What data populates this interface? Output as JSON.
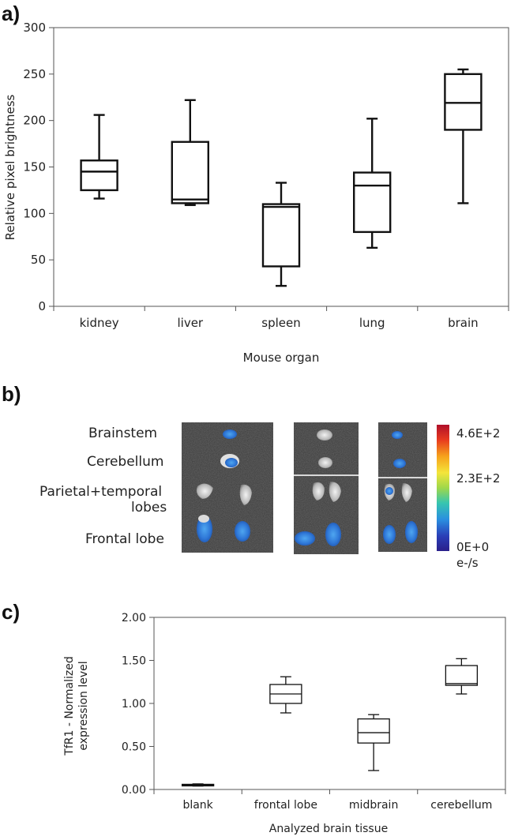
{
  "panels": {
    "a": "a)",
    "b": "b)",
    "c": "c)"
  },
  "chart_data": [
    {
      "type": "box",
      "xlabel": "Mouse organ",
      "ylabel": "Relative pixel brightness",
      "ylim": [
        0,
        300
      ],
      "yticks": [
        0,
        50,
        100,
        150,
        200,
        250,
        300
      ],
      "ytick_labels": [
        "0",
        "50",
        "100",
        "150",
        "200",
        "250",
        "300"
      ],
      "categories": [
        "kidney",
        "liver",
        "spleen",
        "lung",
        "brain"
      ],
      "boxes": [
        {
          "min": 116,
          "q1": 125,
          "median": 145,
          "q3": 157,
          "max": 206
        },
        {
          "min": 109,
          "q1": 111,
          "median": 115,
          "q3": 177,
          "max": 222
        },
        {
          "min": 22,
          "q1": 43,
          "median": 107,
          "q3": 110,
          "max": 133
        },
        {
          "min": 63,
          "q1": 80,
          "median": 130,
          "q3": 144,
          "max": 202
        },
        {
          "min": 111,
          "q1": 190,
          "median": 219,
          "q3": 250,
          "max": 255
        }
      ]
    },
    {
      "type": "image",
      "tissue_labels": [
        "Brainstem",
        "Cerebellum",
        "Parietal+temporal",
        "lobes",
        "Frontal lobe"
      ],
      "colorbar": {
        "labels": [
          "4.6E+2",
          "2.3E+2",
          "0E+0"
        ],
        "unit": "e-/s",
        "colors": [
          "#b0102a",
          "#e83a1f",
          "#f6a21b",
          "#f4e53a",
          "#9fd84a",
          "#36c5b0",
          "#2a8fe0",
          "#2a3fb8",
          "#2a1f8a"
        ]
      }
    },
    {
      "type": "box",
      "xlabel": "Analyzed brain tissue",
      "ylabel": "TfR1 - Normalized expression level",
      "ylabel_lines": [
        "TfR1 - Normalized",
        "expression level"
      ],
      "ylim": [
        0,
        2
      ],
      "yticks": [
        0,
        0.5,
        1,
        1.5,
        2
      ],
      "ytick_labels": [
        "0.00",
        "0.50",
        "1.00",
        "1.50",
        "2.00"
      ],
      "categories": [
        "blank",
        "frontal lobe",
        "midbrain",
        "cerebellum"
      ],
      "boxes": [
        {
          "min": 0.04,
          "q1": 0.045,
          "median": 0.05,
          "q3": 0.06,
          "max": 0.065
        },
        {
          "min": 0.89,
          "q1": 1.0,
          "median": 1.11,
          "q3": 1.22,
          "max": 1.31
        },
        {
          "min": 0.22,
          "q1": 0.54,
          "median": 0.66,
          "q3": 0.82,
          "max": 0.87
        },
        {
          "min": 1.11,
          "q1": 1.21,
          "median": 1.23,
          "q3": 1.44,
          "max": 1.52
        }
      ]
    }
  ]
}
